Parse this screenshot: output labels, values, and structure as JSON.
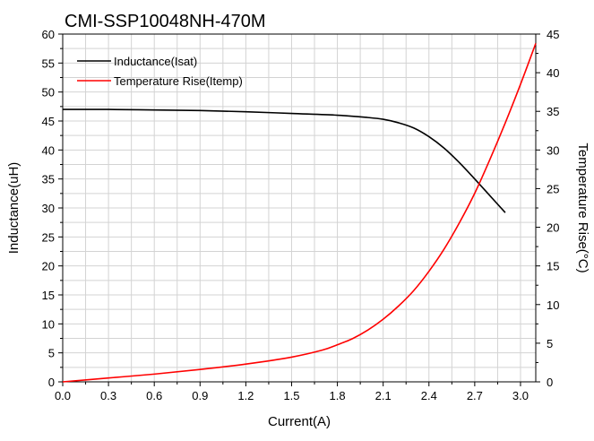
{
  "chart_data": {
    "type": "line",
    "title": "CMI-SSP10048NH-470M",
    "xlabel": "Current(A)",
    "ylabel_left": "Inductance(uH)",
    "ylabel_right": "Temperature Rise(°C)",
    "xlim": [
      0.0,
      3.1
    ],
    "ylim_left": [
      0,
      60
    ],
    "ylim_right": [
      0,
      45
    ],
    "x_ticks": [
      "0.0",
      "0.3",
      "0.6",
      "0.9",
      "1.2",
      "1.5",
      "1.8",
      "2.1",
      "2.4",
      "2.7",
      "3.0"
    ],
    "y_left_ticks": [
      "0",
      "5",
      "10",
      "15",
      "20",
      "25",
      "30",
      "35",
      "40",
      "45",
      "50",
      "55",
      "60"
    ],
    "y_right_ticks": [
      "0",
      "5",
      "10",
      "15",
      "20",
      "25",
      "30",
      "35",
      "40",
      "45"
    ],
    "grid": true,
    "legend_position": "top-left",
    "series": [
      {
        "name": "Inductance(Isat)",
        "axis": "left",
        "color": "#000000",
        "x": [
          0.0,
          0.3,
          0.6,
          0.9,
          1.2,
          1.5,
          1.8,
          2.0,
          2.1,
          2.2,
          2.3,
          2.4,
          2.5,
          2.6,
          2.7,
          2.8,
          2.9
        ],
        "y": [
          47.0,
          47.0,
          46.9,
          46.8,
          46.6,
          46.3,
          46.0,
          45.6,
          45.3,
          44.7,
          43.8,
          42.3,
          40.3,
          37.8,
          35.0,
          32.1,
          29.2
        ]
      },
      {
        "name": "Temperature Rise(Itemp)",
        "axis": "right",
        "color": "#ff0000",
        "x": [
          0.0,
          0.3,
          0.6,
          0.9,
          1.2,
          1.5,
          1.7,
          1.8,
          1.9,
          2.0,
          2.1,
          2.2,
          2.3,
          2.4,
          2.5,
          2.6,
          2.7,
          2.8,
          2.9,
          3.0,
          3.1
        ],
        "y": [
          0.0,
          0.5,
          1.0,
          1.6,
          2.3,
          3.2,
          4.1,
          4.8,
          5.6,
          6.7,
          8.1,
          9.8,
          11.8,
          14.3,
          17.2,
          20.6,
          24.4,
          28.8,
          33.5,
          38.5,
          43.8
        ]
      }
    ]
  }
}
